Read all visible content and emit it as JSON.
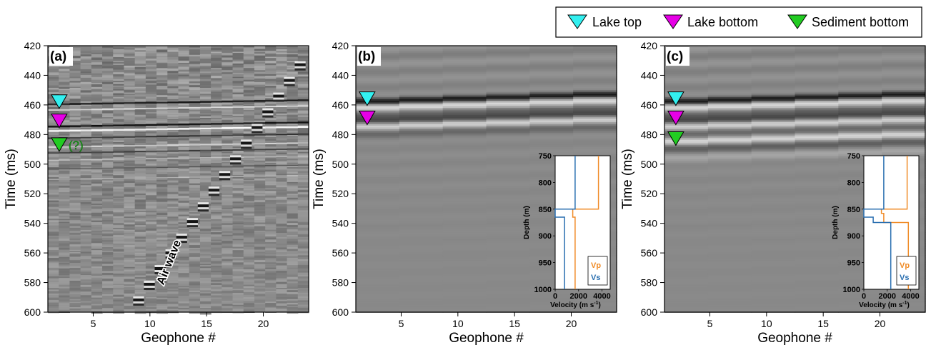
{
  "legend": {
    "items": [
      {
        "label": "Lake top",
        "color": "#33f0f0"
      },
      {
        "label": "Lake bottom",
        "color": "#e600e6"
      },
      {
        "label": "Sediment bottom",
        "color": "#22cc22"
      }
    ]
  },
  "colors": {
    "vp": "#f08c28",
    "vs": "#2a6fb0",
    "axis": "#000000"
  },
  "chart_data": [
    {
      "type": "heatmap",
      "panel_label": "(a)",
      "xlabel": "Geophone #",
      "ylabel": "Time (ms)",
      "xlim": [
        1,
        24
      ],
      "ylim": [
        600,
        420
      ],
      "x_ticks": [
        5,
        10,
        15,
        20
      ],
      "y_ticks": [
        420,
        440,
        460,
        480,
        500,
        520,
        540,
        560,
        580,
        600
      ],
      "markers": [
        {
          "type": "Lake top",
          "x": 2,
          "y": 458
        },
        {
          "type": "Lake bottom",
          "x": 2,
          "y": 471
        },
        {
          "type": "Sediment bottom",
          "x": 2,
          "y": 487,
          "note": "(?)"
        }
      ],
      "annotations": [
        "Air wave"
      ],
      "air_wave_x": [
        9.2,
        24.0
      ],
      "air_wave_y": [
        590,
        425
      ]
    },
    {
      "type": "heatmap",
      "panel_label": "(b)",
      "xlabel": "Geophone #",
      "ylabel": "Time (ms)",
      "xlim": [
        1,
        24
      ],
      "ylim": [
        600,
        420
      ],
      "x_ticks": [
        5,
        10,
        15,
        20
      ],
      "y_ticks": [
        420,
        440,
        460,
        480,
        500,
        520,
        540,
        560,
        580,
        600
      ],
      "markers": [
        {
          "type": "Lake top",
          "x": 2,
          "y": 456
        },
        {
          "type": "Lake bottom",
          "x": 2,
          "y": 469
        }
      ],
      "inset": {
        "type": "line",
        "xlabel": "Velocity (m s",
        "xlabel_sup": "-1",
        "xlabel_end": ")",
        "ylabel": "Depth (m)",
        "xlim": [
          0,
          4700
        ],
        "ylim": [
          1000,
          750
        ],
        "x_ticks": [
          0,
          2000,
          4000
        ],
        "y_ticks": [
          750,
          800,
          850,
          900,
          950,
          1000
        ],
        "series": [
          {
            "name": "Vp",
            "x": [
              3700,
              3700,
              1500,
              1500,
              1700,
              1700
            ],
            "y": [
              750,
              850,
              850,
              865,
              865,
              1000
            ]
          },
          {
            "name": "Vs",
            "x": [
              1700,
              1700,
              0,
              0,
              800,
              800
            ],
            "y": [
              750,
              850,
              850,
              865,
              865,
              1000
            ]
          }
        ]
      }
    },
    {
      "type": "heatmap",
      "panel_label": "(c)",
      "xlabel": "Geophone #",
      "ylabel": "Time (ms)",
      "xlim": [
        1,
        24
      ],
      "ylim": [
        600,
        420
      ],
      "x_ticks": [
        5,
        10,
        15,
        20
      ],
      "y_ticks": [
        420,
        440,
        460,
        480,
        500,
        520,
        540,
        560,
        580,
        600
      ],
      "markers": [
        {
          "type": "Lake top",
          "x": 2,
          "y": 456
        },
        {
          "type": "Lake bottom",
          "x": 2,
          "y": 469
        },
        {
          "type": "Sediment bottom",
          "x": 2,
          "y": 483
        }
      ],
      "inset": {
        "type": "line",
        "xlabel": "Velocity (m s",
        "xlabel_sup": "-1",
        "xlabel_end": ")",
        "ylabel": "Depth (m)",
        "xlim": [
          0,
          4700
        ],
        "ylim": [
          1000,
          750
        ],
        "x_ticks": [
          0,
          2000,
          4000
        ],
        "y_ticks": [
          750,
          800,
          850,
          900,
          950,
          1000
        ],
        "series": [
          {
            "name": "Vp",
            "x": [
              3700,
              3700,
              1500,
              1500,
              1700,
              1700,
              3800,
              3800
            ],
            "y": [
              750,
              850,
              850,
              858,
              858,
              875,
              875,
              1000
            ]
          },
          {
            "name": "Vs",
            "x": [
              1700,
              1700,
              0,
              0,
              800,
              800,
              2300,
              2300
            ],
            "y": [
              750,
              850,
              850,
              865,
              865,
              875,
              875,
              1000
            ]
          }
        ]
      }
    }
  ]
}
